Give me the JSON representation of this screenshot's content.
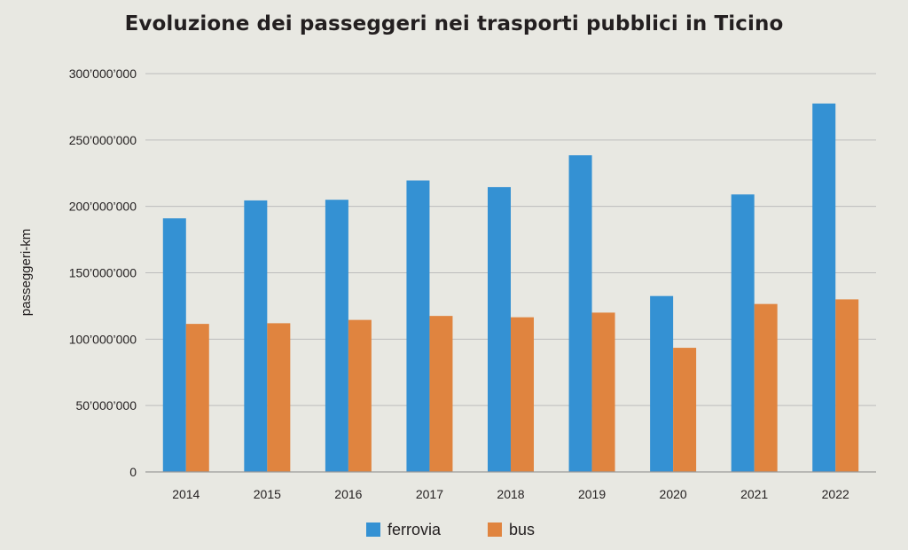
{
  "colors": {
    "ferrovia": "#3491d3",
    "bus": "#e0843f",
    "grid": "#bcbcbc",
    "background": "#e8e8e2"
  },
  "chart_data": {
    "type": "bar",
    "title": "Evoluzione dei passeggeri nei trasporti pubblici in Ticino",
    "xlabel": "",
    "ylabel": "passeggeri-km",
    "categories": [
      "2014",
      "2015",
      "2016",
      "2017",
      "2018",
      "2019",
      "2020",
      "2021",
      "2022"
    ],
    "series": [
      {
        "name": "ferrovia",
        "values": [
          191000000,
          204500000,
          205000000,
          219500000,
          214500000,
          238500000,
          132500000,
          209000000,
          277500000
        ]
      },
      {
        "name": "bus",
        "values": [
          111500000,
          112000000,
          114500000,
          117500000,
          116500000,
          120000000,
          93500000,
          126500000,
          130000000
        ]
      }
    ],
    "ylim": [
      0,
      300000000
    ],
    "yticks": [
      0,
      50000000,
      100000000,
      150000000,
      200000000,
      250000000,
      300000000
    ],
    "ytick_labels": [
      "0",
      "50’000’000",
      "100’000’000",
      "150’000’000",
      "200’000’000",
      "250’000’000",
      "300’000’000"
    ],
    "grid": true,
    "legend_position": "bottom-center"
  }
}
